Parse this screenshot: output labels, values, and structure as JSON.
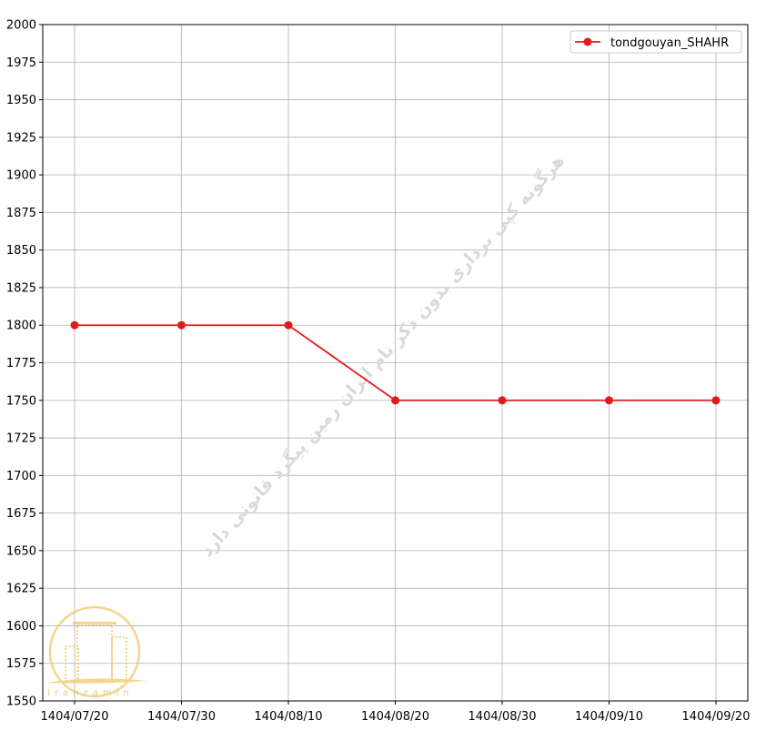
{
  "chart_data": {
    "type": "line",
    "title": "",
    "xlabel": "",
    "ylabel": "",
    "categories": [
      "1404/07/20",
      "1404/07/30",
      "1404/08/10",
      "1404/08/20",
      "1404/08/30",
      "1404/09/10",
      "1404/09/20"
    ],
    "series": [
      {
        "name": "tondgouyan_SHAHR",
        "values": [
          1800,
          1800,
          1800,
          1750,
          1750,
          1750,
          1750
        ],
        "color": "#e31a1c",
        "marker": "circle"
      }
    ],
    "ylim": [
      1550,
      2000
    ],
    "yticks": [
      1550,
      1575,
      1600,
      1625,
      1650,
      1675,
      1700,
      1725,
      1750,
      1775,
      1800,
      1825,
      1850,
      1875,
      1900,
      1925,
      1950,
      1975,
      2000
    ],
    "grid": true,
    "legend": "top-right"
  },
  "watermark": {
    "text": "هرگونه کپی برداری بدون ذکر نام ایران زمین پیگرد قانونی دارد",
    "logo_text": "Iranzamin",
    "color": "#e8c46a"
  }
}
